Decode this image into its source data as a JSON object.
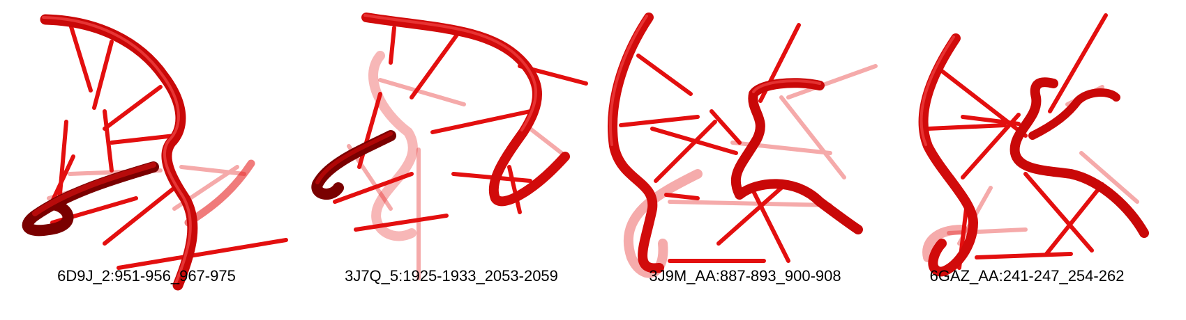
{
  "colors": {
    "strand": "#e30f0f",
    "strand_dark": "#8c0000",
    "strand_highlight": "#ff6a6a",
    "background": "#ffffff"
  },
  "panels": [
    {
      "label": "6D9J_2:951-956_967-975"
    },
    {
      "label": "3J7Q_5:1925-1933_2053-2059"
    },
    {
      "label": "3J9M_AA:887-893_900-908"
    },
    {
      "label": "6GAZ_AA:241-247_254-262"
    }
  ]
}
